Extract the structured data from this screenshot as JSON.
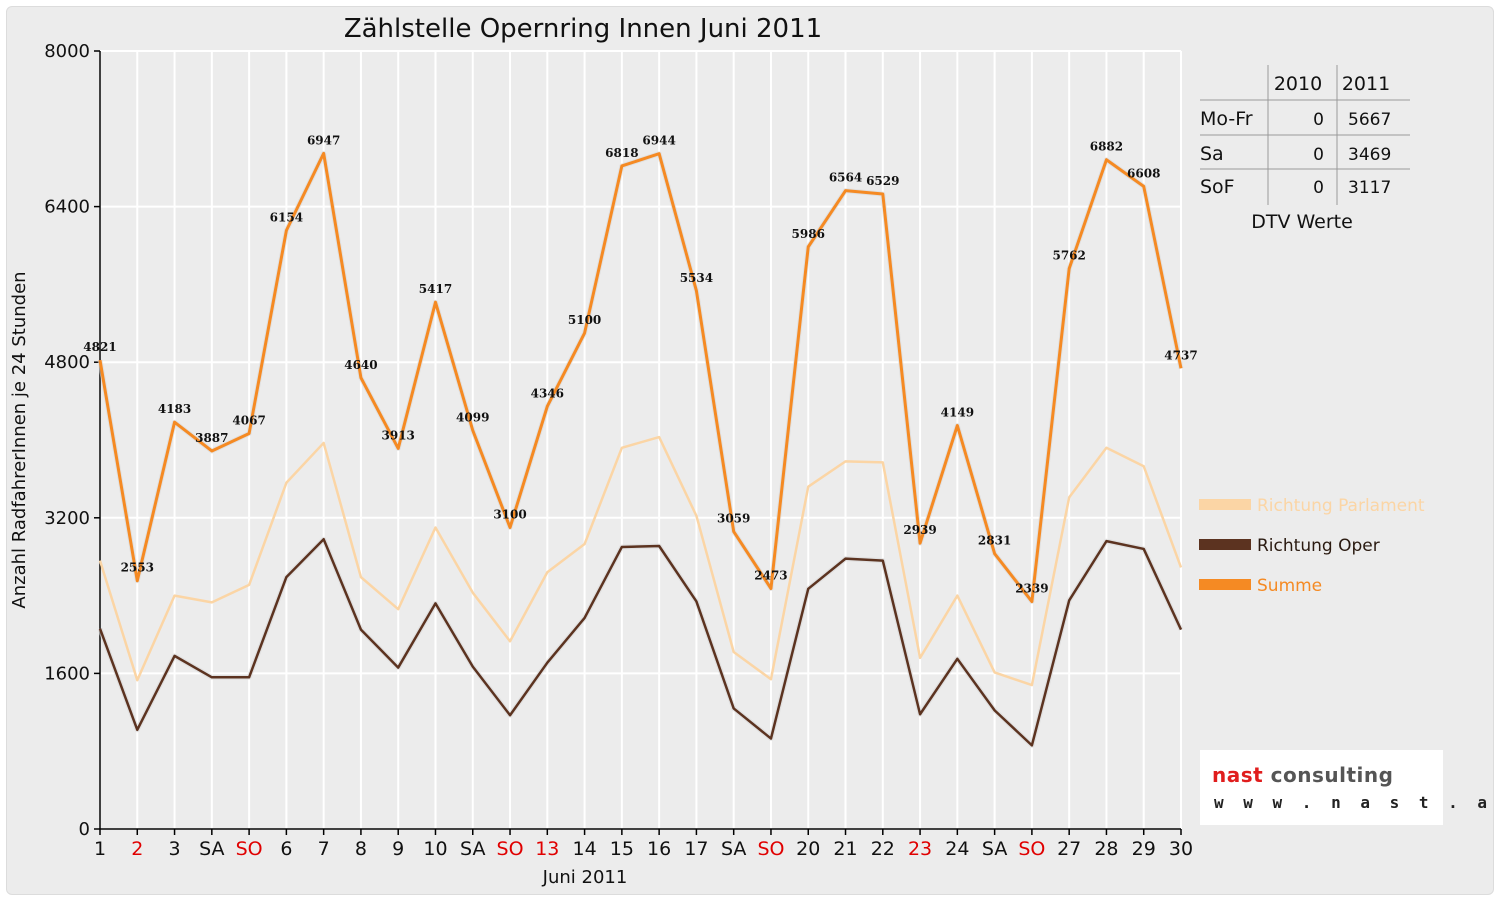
{
  "chart_data": {
    "type": "line",
    "title": "Zählstelle Opernring Innen Juni 2011",
    "xlabel": "Juni 2011",
    "ylabel": "Anzahl RadfahrerInnen je 24 Stunden",
    "ylim": [
      0,
      8000
    ],
    "yticks": [
      "0",
      "1600",
      "3200",
      "4800",
      "6400",
      "8000"
    ],
    "grid": true,
    "legend_position": "right",
    "categories": [
      "1",
      "2",
      "3",
      "SA",
      "SO",
      "6",
      "7",
      "8",
      "9",
      "10",
      "SA",
      "SO",
      "13",
      "14",
      "15",
      "16",
      "17",
      "SA",
      "SO",
      "20",
      "21",
      "22",
      "23",
      "24",
      "SA",
      "SO",
      "27",
      "28",
      "29",
      "30"
    ],
    "red_categories": [
      1,
      4,
      11,
      12,
      18,
      22,
      25
    ],
    "series": [
      {
        "name": "Richtung Parlament",
        "color": "#fbd5a5",
        "values": [
          2760,
          1530,
          2400,
          2330,
          2510,
          3560,
          3970,
          2590,
          2260,
          3100,
          2430,
          1930,
          2640,
          2930,
          3920,
          4030,
          3220,
          1820,
          1540,
          3520,
          3780,
          3770,
          1760,
          2400,
          1610,
          1480,
          3410,
          3920,
          3730,
          2690
        ]
      },
      {
        "name": "Richtung Oper",
        "color": "#5c3320",
        "values": [
          2060,
          1020,
          1780,
          1560,
          1560,
          2590,
          2980,
          2050,
          1660,
          2320,
          1670,
          1170,
          1710,
          2170,
          2900,
          2910,
          2340,
          1240,
          930,
          2470,
          2780,
          2760,
          1180,
          1750,
          1220,
          860,
          2350,
          2960,
          2880,
          2050
        ]
      },
      {
        "name": "Summe",
        "color": "#f58a23",
        "values": [
          4821,
          2553,
          4183,
          3887,
          4067,
          6154,
          6947,
          4640,
          3913,
          5417,
          4099,
          3100,
          4346,
          5100,
          6818,
          6944,
          5534,
          3059,
          2473,
          5986,
          6564,
          6529,
          2939,
          4149,
          2831,
          2339,
          5762,
          6882,
          6608,
          4737
        ]
      }
    ],
    "data_labels": [
      "4821",
      "2553",
      "4183",
      "3887",
      "4067",
      "6154",
      "6947",
      "4640",
      "3913",
      "5417",
      "4099",
      "3100",
      "4346",
      "5100",
      "6818",
      "6944",
      "5534",
      "3059",
      "2473",
      "5986",
      "6564",
      "6529",
      "2939",
      "4149",
      "2831",
      "2339",
      "5762",
      "6882",
      "6608",
      "4737"
    ]
  },
  "dtv_table": {
    "caption": "DTV Werte",
    "col_headers": [
      "2010",
      "2011"
    ],
    "rows": [
      {
        "label": "Mo-Fr",
        "v2010": "0",
        "v2011": "5667"
      },
      {
        "label": "Sa",
        "v2010": "0",
        "v2011": "3469"
      },
      {
        "label": "SoF",
        "v2010": "0",
        "v2011": "3117"
      }
    ]
  },
  "logo": {
    "brand": "nast consulting",
    "url": "w w w . n a s t . a t",
    "brand_color": "#e01d1d",
    "brand_color2": "#555555"
  },
  "colors": {
    "weekday_tick": "#111111",
    "weekend_tick": "#e00000",
    "grid": "#ffffff",
    "background": "#ececec"
  }
}
